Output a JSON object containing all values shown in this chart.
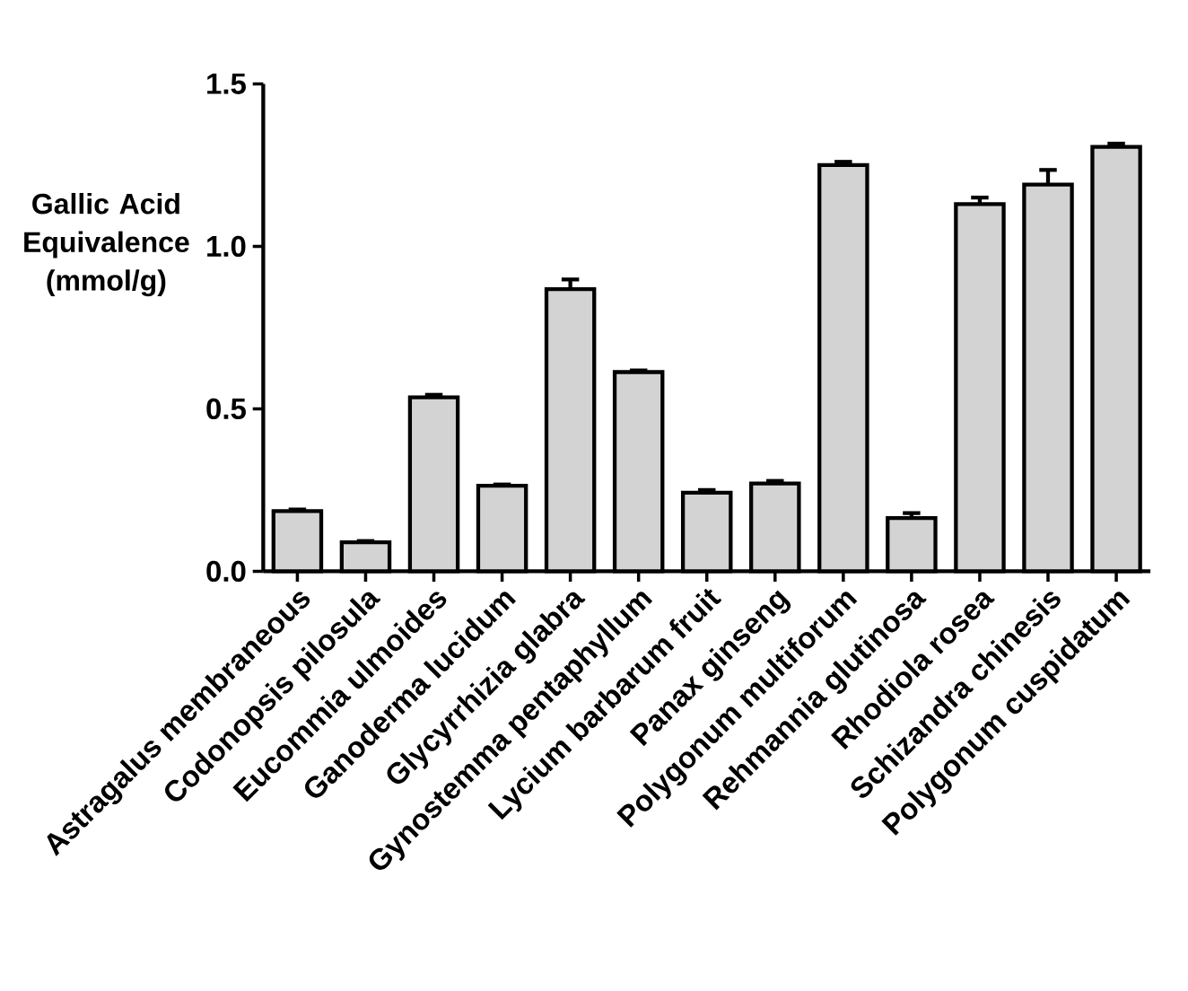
{
  "chart_data": {
    "type": "bar",
    "ylabel": "Gallic Acid Equivalence (mmol/g)",
    "categories": [
      "Astragalus membraneous",
      "Codonopsis pilosula",
      "Eucommia ulmoides",
      "Ganoderma lucidum",
      "Glycyrrhizia glabra",
      "Gynostemma pentaphyllum",
      "Lycium barbarum fruit",
      "Panax ginseng",
      "Polygonum multiforum",
      "Rehmannia glutinosa",
      "Rhodiola rosea",
      "Schizandra chinesis",
      "Polygonum cuspidatum"
    ],
    "values": [
      0.185,
      0.089,
      0.535,
      0.263,
      0.868,
      0.613,
      0.242,
      0.27,
      1.25,
      0.164,
      1.13,
      1.19,
      1.306
    ],
    "errors": [
      0.005,
      0.004,
      0.008,
      0.004,
      0.03,
      0.005,
      0.008,
      0.008,
      0.01,
      0.015,
      0.02,
      0.045,
      0.01
    ],
    "color": "#d3d3d3",
    "ylim": [
      0,
      1.5
    ],
    "yticks": [
      {
        "value": 0,
        "label": "0.0"
      },
      0.5,
      {
        "value": 1,
        "label": "1.0"
      },
      1.5
    ],
    "grid": false
  }
}
